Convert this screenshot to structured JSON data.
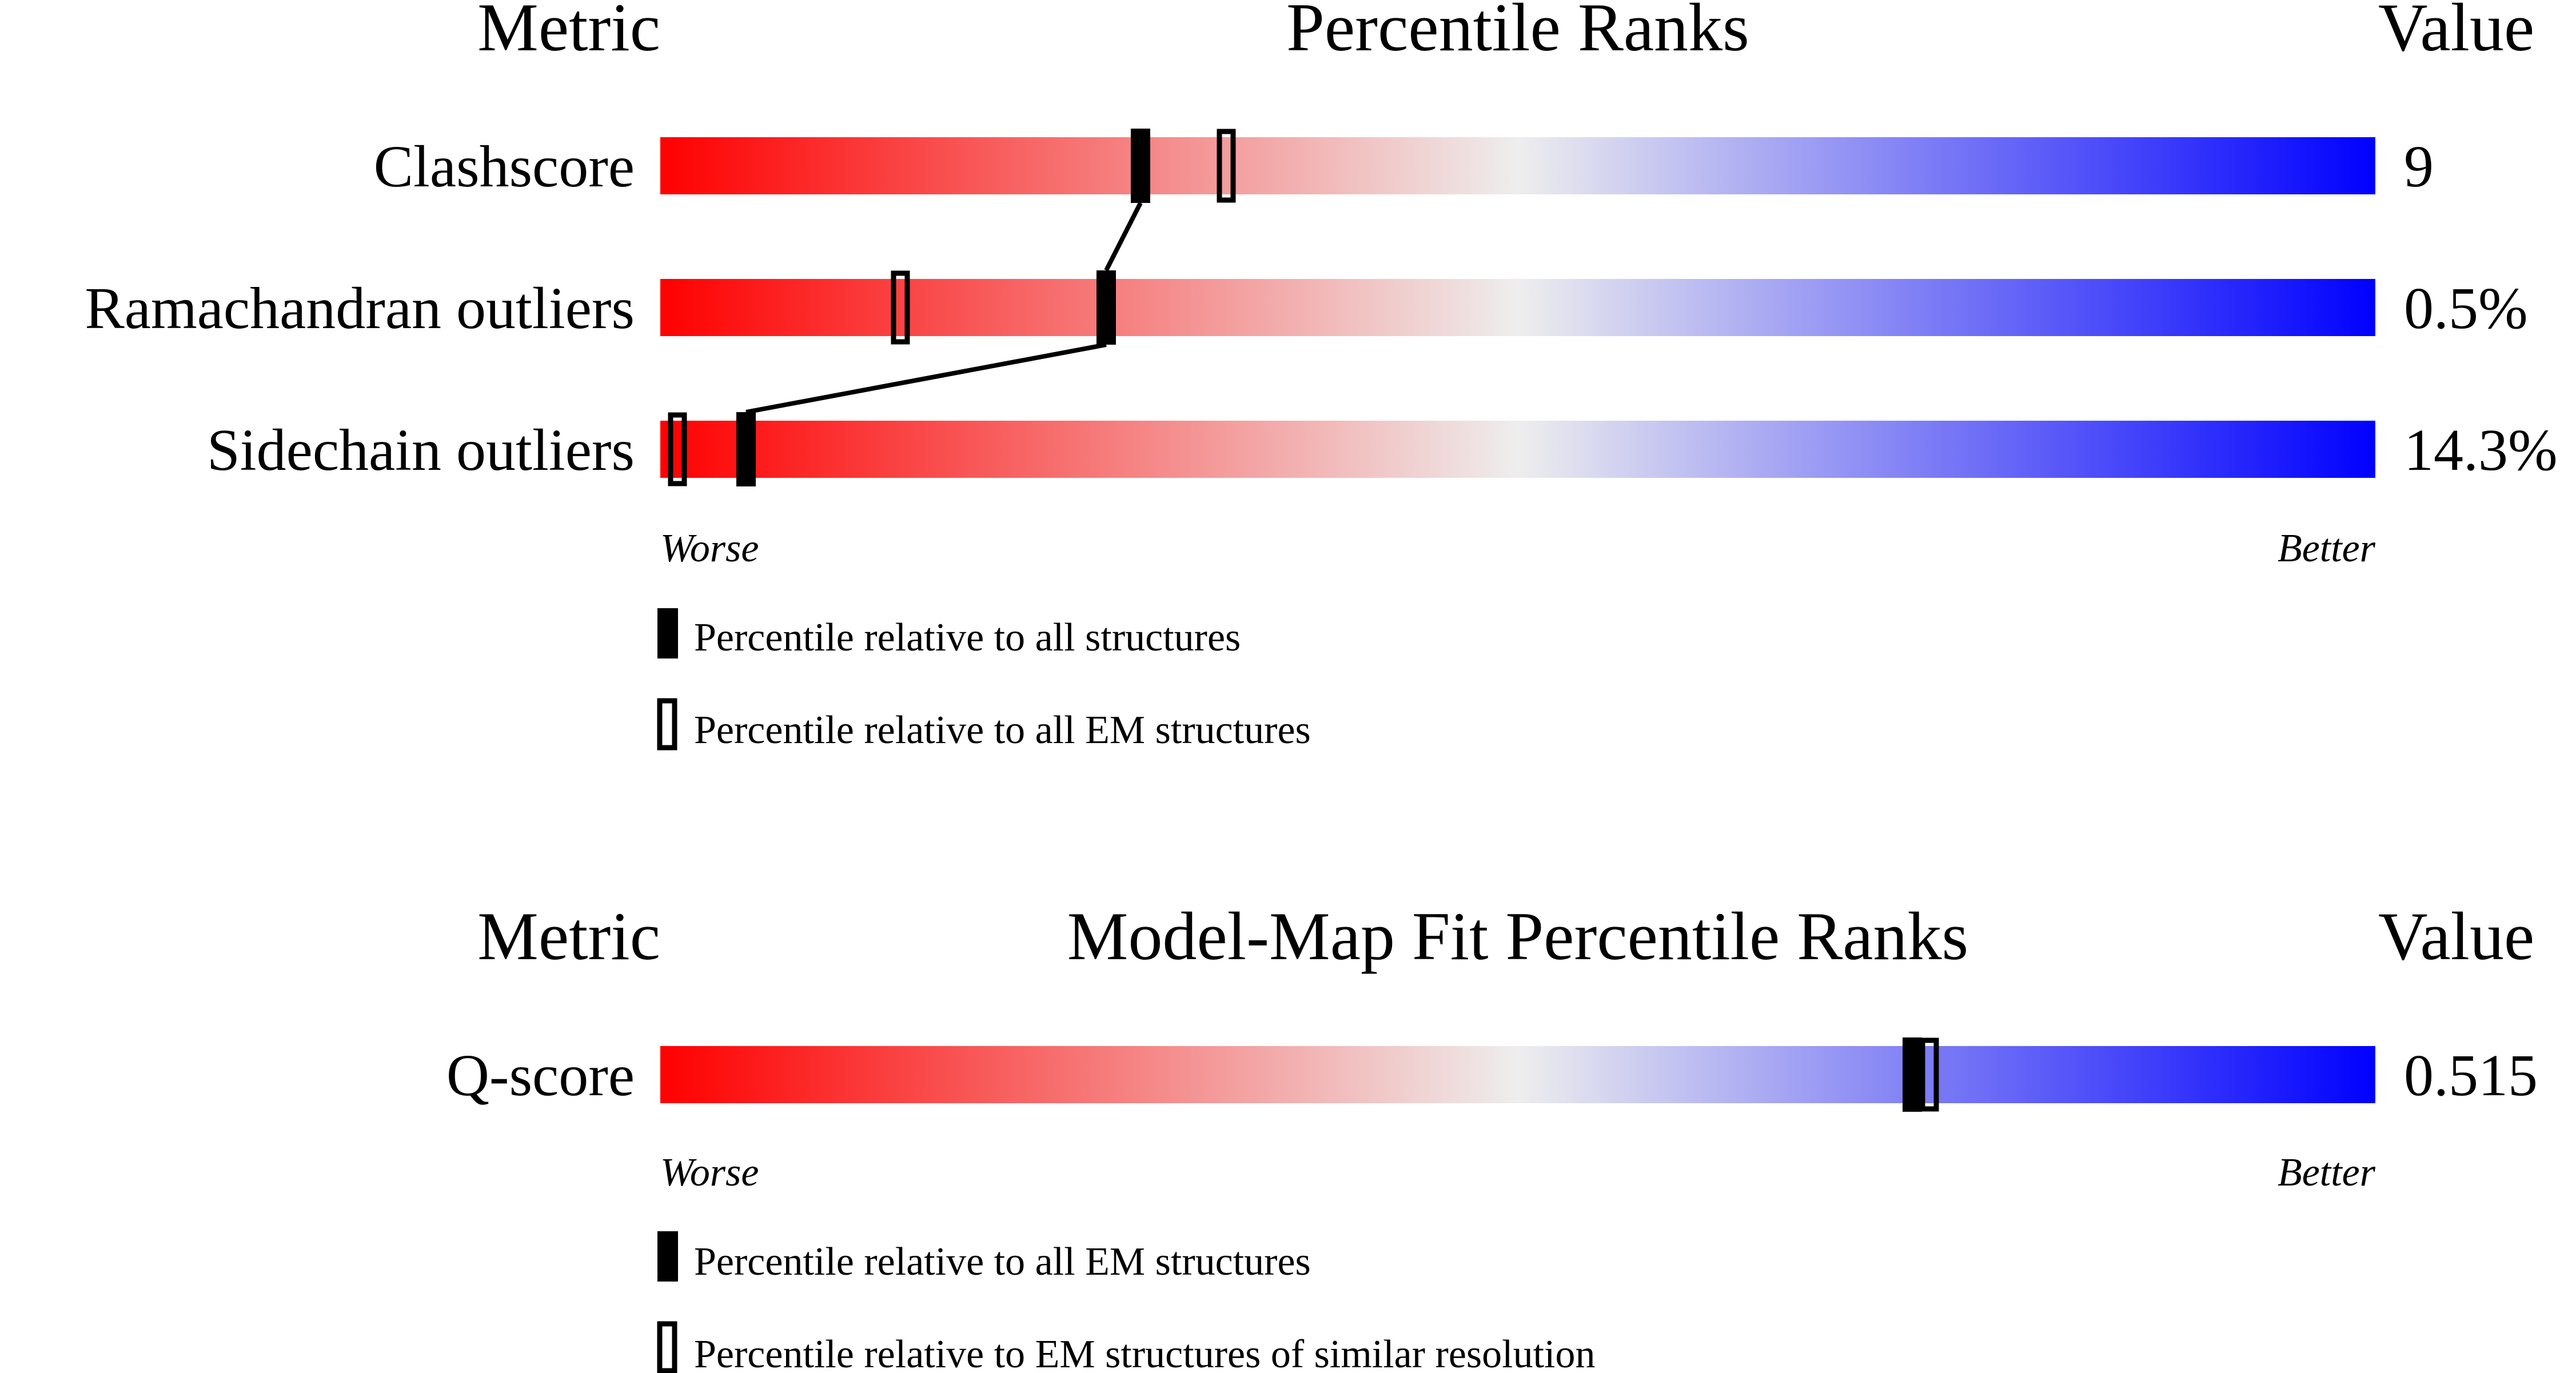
{
  "chart_data": [
    {
      "type": "bar",
      "headers": {
        "metric": "Metric",
        "title": "Percentile Ranks",
        "value": "Value"
      },
      "metrics": [
        {
          "name": "Clashscore",
          "value_label": "9",
          "percentile_all": 28,
          "percentile_em": 33
        },
        {
          "name": "Ramachandran outliers",
          "value_label": "0.5%",
          "percentile_all": 26,
          "percentile_em": 14
        },
        {
          "name": "Sidechain outliers",
          "value_label": "14.3%",
          "percentile_all": 5,
          "percentile_em": 1
        }
      ],
      "scale": {
        "worse": "Worse",
        "better": "Better",
        "range": [
          0,
          100
        ]
      },
      "connect_all_markers": true,
      "legend": [
        {
          "marker": "filled",
          "label": "Percentile relative to all structures"
        },
        {
          "marker": "open",
          "label": "Percentile relative to all EM structures"
        }
      ]
    },
    {
      "type": "bar",
      "headers": {
        "metric": "Metric",
        "title": "Model-Map Fit Percentile Ranks",
        "value": "Value"
      },
      "metrics": [
        {
          "name": "Q-score",
          "value_label": "0.515",
          "percentile_all": 73,
          "percentile_em": 74
        }
      ],
      "scale": {
        "worse": "Worse",
        "better": "Better",
        "range": [
          0,
          100
        ]
      },
      "connect_all_markers": false,
      "legend": [
        {
          "marker": "filled",
          "label": "Percentile relative to all EM structures"
        },
        {
          "marker": "open",
          "label": "Percentile relative to EM structures of similar resolution"
        }
      ]
    }
  ],
  "colors": {
    "worse": "#ff0000",
    "mid": "#eeeeee",
    "better": "#0000ff",
    "marker": "#000000"
  }
}
